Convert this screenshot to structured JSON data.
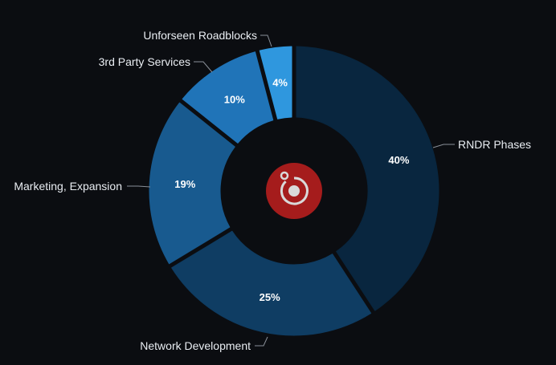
{
  "chart_data": {
    "type": "pie",
    "variant": "donut",
    "title": "",
    "slices": [
      {
        "name": "RNDR Phases",
        "value": 40,
        "label": "40%",
        "color": "#09263f"
      },
      {
        "name": "Network Development",
        "value": 25,
        "label": "25%",
        "color": "#0f3d63"
      },
      {
        "name": "Marketing, Expansion",
        "value": 19,
        "label": "19%",
        "color": "#185a8f"
      },
      {
        "name": "3rd Party Services",
        "value": 10,
        "label": "10%",
        "color": "#2074b8"
      },
      {
        "name": "Unforseen Roadblocks",
        "value": 4,
        "label": "4%",
        "color": "#2f97de"
      }
    ],
    "legend": "none"
  },
  "center_logo": {
    "icon": "render-logo-icon",
    "color": "#a51c1c",
    "ring_color": "#d9d9d9"
  },
  "background_color": "#0b0d11"
}
